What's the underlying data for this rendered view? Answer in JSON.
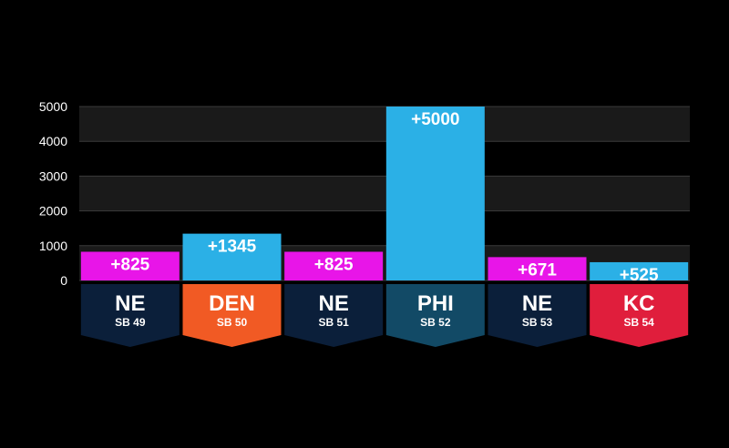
{
  "chart_data": {
    "type": "bar",
    "title": "",
    "xlabel": "",
    "ylabel": "",
    "ylim": [
      0,
      5000
    ],
    "yticks": [
      0,
      1000,
      2000,
      3000,
      4000,
      5000
    ],
    "grid": true,
    "categories": [
      {
        "team": "NE",
        "game": "SB 49"
      },
      {
        "team": "DEN",
        "game": "SB 50"
      },
      {
        "team": "NE",
        "game": "SB 51"
      },
      {
        "team": "PHI",
        "game": "SB 52"
      },
      {
        "team": "NE",
        "game": "SB 53"
      },
      {
        "team": "KC",
        "game": "SB 54"
      }
    ],
    "values": [
      825,
      1345,
      825,
      5000,
      671,
      525
    ],
    "value_labels": [
      "+825",
      "+1345",
      "+825",
      "+5000",
      "+671",
      "+525"
    ],
    "bar_colors": [
      "#e815e8",
      "#2bb0e6",
      "#e815e8",
      "#2bb0e6",
      "#e815e8",
      "#2bb0e6"
    ],
    "tag_colors": [
      "#0b1f3a",
      "#f15a24",
      "#0b1f3a",
      "#124a66",
      "#0b1f3a",
      "#e01e3c"
    ],
    "plot_band_colors": [
      "#1a1a1a",
      "#000000"
    ],
    "text_color": "#ffffff"
  }
}
